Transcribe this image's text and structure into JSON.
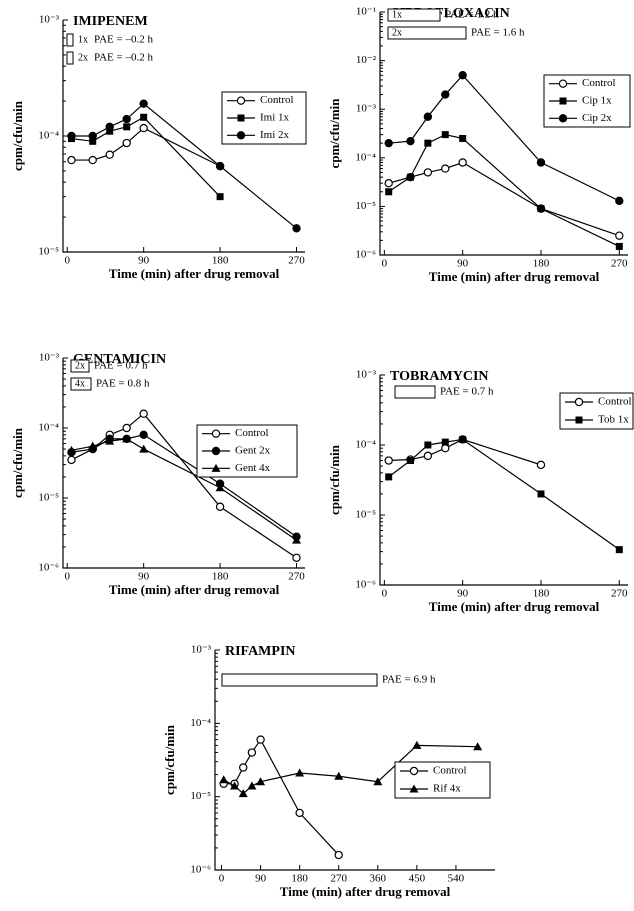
{
  "chart_data": [
    {
      "type": "line",
      "title": "IMIPENEM",
      "x_label": "Time (min) after drug removal",
      "y_label": "cpm/cfu/min",
      "log_y": true,
      "x": [
        5,
        30,
        50,
        70,
        90,
        180,
        270
      ],
      "xlim": [
        -5,
        280
      ],
      "xticks": [
        0,
        90,
        180,
        270
      ],
      "ylim": [
        1e-05,
        0.001
      ],
      "yticks": [
        {
          "value": 1e-05,
          "label": "10⁻⁵"
        },
        {
          "value": 0.0001,
          "label": "10⁻⁴"
        },
        {
          "value": 0.001,
          "label": "10⁻³"
        }
      ],
      "legend": "right",
      "series": [
        {
          "name": "Control",
          "color": "#000000",
          "marker": "open-circle",
          "values": [
            6.2e-05,
            6.2e-05,
            6.9e-05,
            8.7e-05,
            0.000117,
            5.5e-05,
            null
          ]
        },
        {
          "name": "Imi 1x",
          "color": "#000000",
          "marker": "square",
          "values": [
            9.5e-05,
            9e-05,
            0.00011,
            0.00012,
            0.000145,
            3e-05,
            null
          ]
        },
        {
          "name": "Imi 2x",
          "color": "#000000",
          "marker": "circle",
          "values": [
            0.0001,
            0.0001,
            0.00012,
            0.00014,
            0.00019,
            5.5e-05,
            1.6e-05
          ]
        }
      ],
      "annotations": [
        {
          "tag": "1x",
          "text": "PAE = –0.2 h"
        },
        {
          "tag": "2x",
          "text": "PAE = –0.2 h"
        }
      ]
    },
    {
      "type": "line",
      "title": "CIPROFLOXACIN",
      "x_label": "Time (min) after drug removal",
      "y_label": "cpm/cfu/min",
      "log_y": true,
      "x": [
        5,
        30,
        50,
        70,
        90,
        180,
        270
      ],
      "xlim": [
        -5,
        280
      ],
      "xticks": [
        0,
        90,
        180,
        270
      ],
      "ylim": [
        1e-06,
        0.1
      ],
      "yticks": [
        {
          "value": 1e-06,
          "label": "10⁻⁶"
        },
        {
          "value": 1e-05,
          "label": "10⁻⁵"
        },
        {
          "value": 0.0001,
          "label": "10⁻⁴"
        },
        {
          "value": 0.001,
          "label": "10⁻³"
        },
        {
          "value": 0.01,
          "label": "10⁻²"
        },
        {
          "value": 0.1,
          "label": "10⁻¹"
        }
      ],
      "legend": "right",
      "series": [
        {
          "name": "Control",
          "color": "#000000",
          "marker": "open-circle",
          "values": [
            3e-05,
            4e-05,
            5e-05,
            6e-05,
            8e-05,
            9e-06,
            2.5e-06
          ]
        },
        {
          "name": "Cip 1x",
          "color": "#000000",
          "marker": "square",
          "values": [
            2e-05,
            4e-05,
            0.0002,
            0.0003,
            0.00025,
            9e-06,
            1.5e-06
          ]
        },
        {
          "name": "Cip 2x",
          "color": "#000000",
          "marker": "circle",
          "values": [
            0.0002,
            0.00022,
            0.0007,
            0.002,
            0.005,
            8e-05,
            1.3e-05
          ]
        }
      ],
      "annotations": [
        {
          "tag": "1x",
          "text": "PAE = 1.2 h"
        },
        {
          "tag": "2x",
          "text": "PAE = 1.6 h"
        }
      ]
    },
    {
      "type": "line",
      "title": "GENTAMICIN",
      "x_label": "Time (min) after drug removal",
      "y_label": "cpm/cfu/min",
      "log_y": true,
      "x": [
        5,
        30,
        50,
        70,
        90,
        180,
        270
      ],
      "xlim": [
        -5,
        280
      ],
      "xticks": [
        0,
        90,
        180,
        270
      ],
      "ylim": [
        1e-06,
        0.001
      ],
      "yticks": [
        {
          "value": 1e-06,
          "label": "10⁻⁶"
        },
        {
          "value": 1e-05,
          "label": "10⁻⁵"
        },
        {
          "value": 0.0001,
          "label": "10⁻⁴"
        },
        {
          "value": 0.001,
          "label": "10⁻³"
        }
      ],
      "legend": "right",
      "series": [
        {
          "name": "Control",
          "color": "#000000",
          "marker": "open-circle",
          "values": [
            3.5e-05,
            5e-05,
            8e-05,
            0.0001,
            0.00016,
            7.5e-06,
            1.4e-06
          ]
        },
        {
          "name": "Gent 2x",
          "color": "#000000",
          "marker": "circle",
          "values": [
            4.5e-05,
            5e-05,
            7e-05,
            7e-05,
            8e-05,
            1.6e-05,
            2.8e-06
          ]
        },
        {
          "name": "Gent 4x",
          "color": "#000000",
          "marker": "triangle",
          "values": [
            4.8e-05,
            5.5e-05,
            6.5e-05,
            7e-05,
            5e-05,
            1.4e-05,
            2.5e-06
          ]
        }
      ],
      "annotations": [
        {
          "tag": "2x",
          "text": "PAE = 0.7 h"
        },
        {
          "tag": "4x",
          "text": "PAE = 0.8 h"
        }
      ]
    },
    {
      "type": "line",
      "title": "TOBRAMYCIN",
      "x_label": "Time (min) after drug removal",
      "y_label": "cpm/cfu/min",
      "log_y": true,
      "x": [
        5,
        30,
        50,
        70,
        90,
        180,
        270
      ],
      "xlim": [
        -5,
        280
      ],
      "xticks": [
        0,
        90,
        180,
        270
      ],
      "ylim": [
        1e-06,
        0.001
      ],
      "yticks": [
        {
          "value": 1e-06,
          "label": "10⁻⁶"
        },
        {
          "value": 1e-05,
          "label": "10⁻⁵"
        },
        {
          "value": 0.0001,
          "label": "10⁻⁴"
        },
        {
          "value": 0.001,
          "label": "10⁻³"
        }
      ],
      "legend": "right",
      "series": [
        {
          "name": "Control",
          "color": "#000000",
          "marker": "open-circle",
          "values": [
            6e-05,
            6.2e-05,
            7e-05,
            9e-05,
            0.00012,
            5.2e-05,
            null
          ]
        },
        {
          "name": "Tob 1x",
          "color": "#000000",
          "marker": "square",
          "values": [
            3.5e-05,
            6e-05,
            0.0001,
            0.00011,
            0.00012,
            2e-05,
            3.2e-06
          ]
        }
      ],
      "annotations": [
        {
          "text": "PAE = 0.7 h"
        }
      ]
    },
    {
      "type": "line",
      "title": "RIFAMPIN",
      "x_label": "Time (min) after drug removal",
      "y_label": "cpm/cfu/min",
      "log_y": true,
      "x": [
        5,
        30,
        50,
        70,
        90,
        180,
        270,
        360,
        450,
        590
      ],
      "xlim": [
        -15,
        630
      ],
      "xticks": [
        0,
        90,
        180,
        270,
        360,
        450,
        540
      ],
      "ylim": [
        1e-06,
        0.001
      ],
      "yticks": [
        {
          "value": 1e-06,
          "label": "10⁻⁶"
        },
        {
          "value": 1e-05,
          "label": "10⁻⁵"
        },
        {
          "value": 0.0001,
          "label": "10⁻⁴"
        },
        {
          "value": 0.001,
          "label": "10⁻³"
        }
      ],
      "legend": "right",
      "series": [
        {
          "name": "Control",
          "color": "#000000",
          "marker": "open-circle",
          "values": [
            1.5e-05,
            1.5e-05,
            2.5e-05,
            4e-05,
            6e-05,
            6e-06,
            1.6e-06,
            null,
            null,
            null
          ]
        },
        {
          "name": "Rif 4x",
          "color": "#000000",
          "marker": "triangle",
          "values": [
            1.7e-05,
            1.4e-05,
            1.1e-05,
            1.4e-05,
            1.6e-05,
            2.1e-05,
            1.9e-05,
            1.6e-05,
            5e-05,
            4.8e-05
          ]
        }
      ],
      "annotations": [
        {
          "text": "PAE = 6.9 h"
        }
      ]
    }
  ]
}
